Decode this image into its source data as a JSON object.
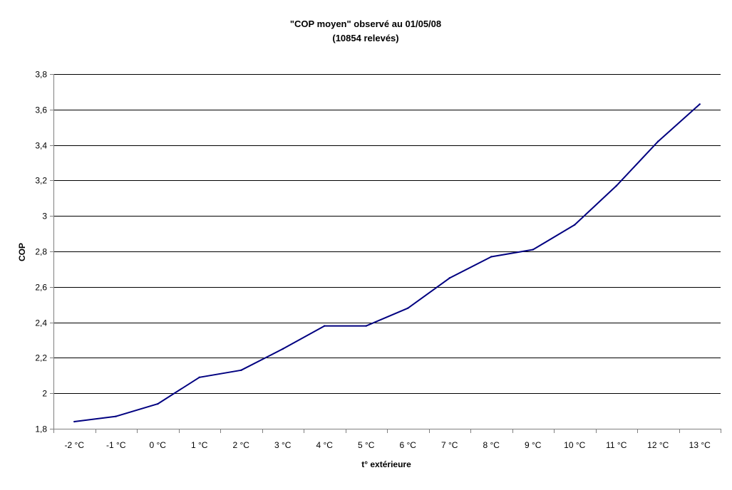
{
  "chart_data": {
    "type": "line",
    "title": "\"COP moyen\" observé au 01/05/08",
    "subtitle": "(10854 relevés)",
    "xlabel": "t° extérieure",
    "ylabel": "COP",
    "categories": [
      "-2 °C",
      "-1 °C",
      "0 °C",
      "1 °C",
      "2 °C",
      "3 °C",
      "4 °C",
      "5 °C",
      "6 °C",
      "7 °C",
      "8 °C",
      "9 °C",
      "10 °C",
      "11 °C",
      "12 °C",
      "13 °C"
    ],
    "y_ticks": [
      "1,8",
      "2",
      "2,2",
      "2,4",
      "2,6",
      "2,8",
      "3",
      "3,2",
      "3,4",
      "3,6",
      "3,8"
    ],
    "ylim": [
      1.8,
      3.8
    ],
    "y_step": 0.2,
    "grid": true,
    "legend": "none",
    "series": [
      {
        "values": [
          1.84,
          1.87,
          1.94,
          2.09,
          2.13,
          2.25,
          2.38,
          2.38,
          2.48,
          2.65,
          2.77,
          2.81,
          2.95,
          3.17,
          3.42,
          3.63
        ],
        "color": "#000080"
      }
    ]
  }
}
